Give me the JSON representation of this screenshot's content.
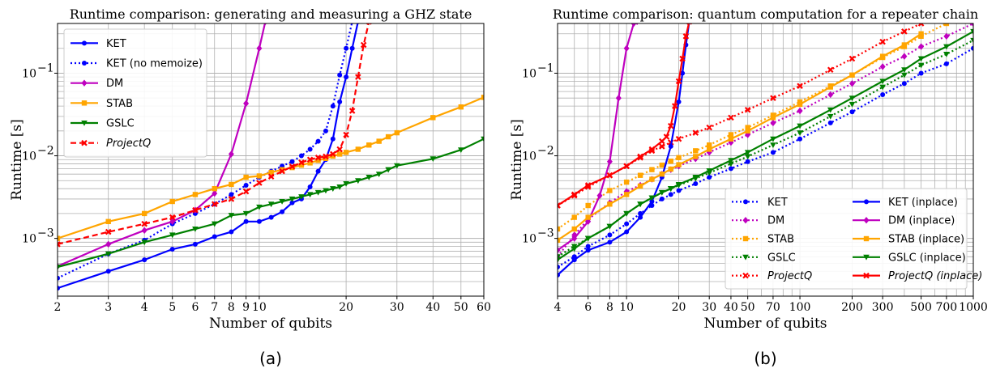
{
  "chart_data": [
    {
      "type": "line",
      "title": "Runtime comparison: generating and measuring a GHZ state",
      "xlabel": "Number of qubits",
      "ylabel": "Runtime [s]",
      "caption": "(a)",
      "xscale": "log",
      "yscale": "log",
      "xlim": [
        2,
        60
      ],
      "ylim": [
        0.0002,
        0.4
      ],
      "grid": true,
      "legend": "top-left",
      "xticks": [
        2,
        3,
        4,
        5,
        6,
        7,
        8,
        9,
        10,
        20,
        30,
        40,
        50,
        60
      ],
      "xtick_labels": [
        "2",
        "3",
        "4",
        "5",
        "6",
        "7",
        "8",
        "9",
        "10",
        "20",
        "30",
        "40",
        "50",
        "60"
      ],
      "yticks": [
        0.001,
        0.01,
        0.1
      ],
      "ytick_labels": [
        "10",
        "10",
        "10"
      ],
      "ytick_exps": [
        "−3",
        "−2",
        "−1"
      ],
      "series": [
        {
          "name": "KET",
          "color": "#0000ff",
          "dash": "solid",
          "marker": "circle",
          "x": [
            2,
            3,
            4,
            5,
            6,
            7,
            8,
            9,
            10,
            11,
            12,
            13,
            14,
            15,
            16,
            17,
            18,
            19,
            20,
            21,
            22
          ],
          "y": [
            0.00025,
            0.0004,
            0.00055,
            0.00074,
            0.00085,
            0.00105,
            0.0012,
            0.0016,
            0.0016,
            0.0018,
            0.0021,
            0.0027,
            0.003,
            0.0042,
            0.0065,
            0.009,
            0.016,
            0.045,
            0.09,
            0.2,
            0.42
          ]
        },
        {
          "name": "KET (no memoize)",
          "color": "#0000ff",
          "dash": "dotted",
          "marker": "circle",
          "x": [
            2,
            3,
            4,
            5,
            6,
            7,
            8,
            9,
            10,
            11,
            12,
            13,
            14,
            15,
            16,
            17,
            18,
            19,
            20,
            21
          ],
          "y": [
            0.00033,
            0.00065,
            0.00095,
            0.0015,
            0.002,
            0.0026,
            0.0034,
            0.0044,
            0.0055,
            0.0065,
            0.0075,
            0.0085,
            0.01,
            0.012,
            0.015,
            0.02,
            0.04,
            0.095,
            0.2,
            0.42
          ]
        },
        {
          "name": "DM",
          "color": "#bf00bf",
          "dash": "solid",
          "marker": "diamond",
          "x": [
            2,
            3,
            4,
            5,
            6,
            7,
            8,
            9,
            10,
            10.5
          ],
          "y": [
            0.00046,
            0.00085,
            0.00125,
            0.0016,
            0.0022,
            0.0035,
            0.0105,
            0.043,
            0.2,
            0.42
          ]
        },
        {
          "name": "STAB",
          "color": "#ffa500",
          "dash": "solid",
          "marker": "square",
          "x": [
            2,
            3,
            4,
            5,
            6,
            7,
            8,
            9,
            10,
            11,
            12,
            13,
            14,
            15,
            16,
            17,
            18,
            19,
            20,
            22,
            24,
            26,
            28,
            30,
            40,
            50,
            60
          ],
          "y": [
            0.001,
            0.0016,
            0.002,
            0.0028,
            0.0034,
            0.004,
            0.0045,
            0.0055,
            0.0057,
            0.0063,
            0.0068,
            0.0072,
            0.0077,
            0.0082,
            0.0088,
            0.0093,
            0.0099,
            0.0105,
            0.011,
            0.012,
            0.0135,
            0.015,
            0.017,
            0.019,
            0.029,
            0.039,
            0.051
          ]
        },
        {
          "name": "GSLC",
          "color": "#008000",
          "dash": "solid",
          "marker": "triangle-down",
          "x": [
            2,
            3,
            4,
            5,
            6,
            7,
            8,
            9,
            10,
            11,
            12,
            13,
            14,
            15,
            16,
            17,
            18,
            19,
            20,
            22,
            24,
            26,
            28,
            30,
            40,
            50,
            60
          ],
          "y": [
            0.00045,
            0.00065,
            0.0009,
            0.0011,
            0.0013,
            0.0015,
            0.0019,
            0.002,
            0.0024,
            0.0026,
            0.0028,
            0.003,
            0.0032,
            0.0034,
            0.0036,
            0.0038,
            0.004,
            0.0042,
            0.0046,
            0.005,
            0.0055,
            0.006,
            0.0068,
            0.0076,
            0.0092,
            0.0118,
            0.016
          ]
        },
        {
          "name": "ProjectQ",
          "name_italic": true,
          "color": "#ff0000",
          "dash": "dashed",
          "marker": "x",
          "x": [
            2,
            3,
            4,
            5,
            6,
            7,
            8,
            9,
            10,
            11,
            12,
            13,
            14,
            15,
            16,
            17,
            18,
            19,
            20,
            21,
            22,
            23,
            24
          ],
          "y": [
            0.00085,
            0.0012,
            0.0015,
            0.0018,
            0.0022,
            0.0026,
            0.003,
            0.0037,
            0.0047,
            0.0056,
            0.0065,
            0.0074,
            0.0083,
            0.009,
            0.0095,
            0.0098,
            0.0105,
            0.012,
            0.018,
            0.035,
            0.09,
            0.22,
            0.42
          ]
        }
      ]
    },
    {
      "type": "line",
      "title": "Runtime comparison: quantum computation for a repeater chain",
      "xlabel": "Number of qubits",
      "ylabel": "Runtime [s]",
      "caption": "(b)",
      "xscale": "log",
      "yscale": "log",
      "xlim": [
        4,
        1000
      ],
      "ylim": [
        0.0002,
        0.4
      ],
      "grid": true,
      "legend": "bottom-right",
      "legend_columns": 2,
      "xticks": [
        4,
        6,
        8,
        10,
        20,
        30,
        40,
        50,
        70,
        100,
        200,
        300,
        500,
        700,
        1000
      ],
      "xtick_labels": [
        "4",
        "6",
        "8",
        "10",
        "20",
        "30",
        "40",
        "50",
        "70",
        "100",
        "200",
        "300",
        "500",
        "700",
        "1000"
      ],
      "yticks": [
        0.001,
        0.01,
        0.1
      ],
      "ytick_labels": [
        "10",
        "10",
        "10"
      ],
      "ytick_exps": [
        "−3",
        "−2",
        "−1"
      ],
      "series": [
        {
          "name": "KET",
          "color": "#0000ff",
          "dash": "dotted",
          "marker": "circle",
          "x": [
            4,
            5,
            6,
            8,
            10,
            12,
            14,
            16,
            18,
            20,
            25,
            30,
            40,
            50,
            70,
            100,
            150,
            200,
            300,
            400,
            500,
            700,
            1000
          ],
          "y": [
            0.00045,
            0.0006,
            0.0008,
            0.0011,
            0.0015,
            0.002,
            0.0025,
            0.003,
            0.0034,
            0.0038,
            0.0046,
            0.0055,
            0.007,
            0.0085,
            0.011,
            0.016,
            0.025,
            0.034,
            0.055,
            0.075,
            0.1,
            0.13,
            0.2
          ]
        },
        {
          "name": "DM",
          "color": "#bf00bf",
          "dash": "dotted",
          "marker": "diamond",
          "x": [
            4,
            5,
            6,
            8,
            10,
            12,
            14,
            16,
            18,
            20,
            25,
            30,
            40,
            50,
            70,
            100,
            150,
            200,
            300,
            400,
            500,
            700,
            1000
          ],
          "y": [
            0.0006,
            0.0011,
            0.0017,
            0.0027,
            0.0037,
            0.0044,
            0.0052,
            0.006,
            0.0068,
            0.0075,
            0.0092,
            0.011,
            0.0145,
            0.018,
            0.025,
            0.035,
            0.055,
            0.075,
            0.12,
            0.16,
            0.21,
            0.28,
            0.4
          ]
        },
        {
          "name": "STAB",
          "color": "#ffa500",
          "dash": "dotted",
          "marker": "square",
          "x": [
            4,
            5,
            6,
            8,
            10,
            12,
            14,
            16,
            18,
            20,
            25,
            30,
            40,
            50,
            70,
            100,
            150,
            200,
            300,
            400,
            500,
            700
          ],
          "y": [
            0.0013,
            0.0018,
            0.0025,
            0.0038,
            0.0048,
            0.0058,
            0.0068,
            0.0077,
            0.0086,
            0.0095,
            0.0115,
            0.0135,
            0.018,
            0.022,
            0.031,
            0.045,
            0.07,
            0.095,
            0.155,
            0.21,
            0.28,
            0.4
          ]
        },
        {
          "name": "GSLC",
          "color": "#008000",
          "dash": "dotted",
          "marker": "triangle-down",
          "x": [
            4,
            5,
            6,
            8,
            10,
            12,
            14,
            16,
            18,
            20,
            25,
            30,
            40,
            50,
            70,
            100,
            150,
            200,
            300,
            400,
            500,
            700,
            1000
          ],
          "y": [
            0.0006,
            0.0008,
            0.001,
            0.0014,
            0.002,
            0.0026,
            0.0031,
            0.0036,
            0.004,
            0.0044,
            0.0053,
            0.0062,
            0.008,
            0.0098,
            0.0135,
            0.019,
            0.03,
            0.042,
            0.068,
            0.095,
            0.125,
            0.17,
            0.25
          ]
        },
        {
          "name": "ProjectQ",
          "name_italic": true,
          "color": "#ff0000",
          "dash": "dotted",
          "marker": "x",
          "x": [
            4,
            5,
            6,
            8,
            10,
            12,
            14,
            16,
            18,
            20,
            25,
            30,
            40,
            50,
            70,
            100,
            150,
            200,
            300,
            400,
            500
          ],
          "y": [
            0.0025,
            0.0033,
            0.0042,
            0.0058,
            0.0075,
            0.0095,
            0.0115,
            0.013,
            0.0145,
            0.016,
            0.019,
            0.022,
            0.029,
            0.036,
            0.05,
            0.07,
            0.11,
            0.15,
            0.24,
            0.32,
            0.4
          ]
        },
        {
          "name": "KET (inplace)",
          "color": "#0000ff",
          "dash": "solid",
          "marker": "circle",
          "x": [
            4,
            5,
            6,
            8,
            10,
            12,
            14,
            16,
            18,
            20,
            21,
            22,
            23
          ],
          "y": [
            0.00036,
            0.00055,
            0.00072,
            0.0009,
            0.0012,
            0.0018,
            0.0028,
            0.0055,
            0.013,
            0.045,
            0.1,
            0.22,
            0.42
          ]
        },
        {
          "name": "DM (inplace)",
          "color": "#bf00bf",
          "dash": "solid",
          "marker": "diamond",
          "x": [
            4,
            5,
            6,
            7,
            8,
            9,
            10,
            11,
            11.5
          ],
          "y": [
            0.00072,
            0.001,
            0.0016,
            0.0033,
            0.0085,
            0.05,
            0.2,
            0.4,
            0.42
          ]
        },
        {
          "name": "STAB (inplace)",
          "color": "#ffa500",
          "dash": "solid",
          "marker": "square",
          "x": [
            4,
            5,
            6,
            8,
            10,
            12,
            14,
            16,
            18,
            20,
            25,
            30,
            40,
            50,
            70,
            100,
            150,
            200,
            300,
            400,
            500
          ],
          "y": [
            0.00095,
            0.0013,
            0.0018,
            0.0026,
            0.0034,
            0.0043,
            0.0052,
            0.006,
            0.0069,
            0.0078,
            0.0098,
            0.012,
            0.016,
            0.02,
            0.029,
            0.042,
            0.068,
            0.095,
            0.16,
            0.22,
            0.3
          ]
        },
        {
          "name": "GSLC (inplace)",
          "color": "#008000",
          "dash": "solid",
          "marker": "triangle-down",
          "x": [
            4,
            5,
            6,
            8,
            10,
            12,
            14,
            16,
            18,
            20,
            25,
            30,
            40,
            50,
            70,
            100,
            150,
            200,
            300,
            400,
            500,
            700,
            1000
          ],
          "y": [
            0.00055,
            0.00075,
            0.001,
            0.0014,
            0.002,
            0.0026,
            0.0031,
            0.0036,
            0.004,
            0.0045,
            0.0055,
            0.0066,
            0.0088,
            0.011,
            0.016,
            0.023,
            0.036,
            0.05,
            0.08,
            0.11,
            0.15,
            0.21,
            0.32
          ]
        },
        {
          "name": "ProjectQ (inplace)",
          "name_italic": true,
          "color": "#ff0000",
          "dash": "solid",
          "marker": "x",
          "x": [
            4,
            5,
            6,
            8,
            10,
            12,
            14,
            16,
            17,
            18,
            19,
            20,
            21,
            22,
            23
          ],
          "y": [
            0.0025,
            0.0034,
            0.0044,
            0.0058,
            0.0075,
            0.0098,
            0.012,
            0.015,
            0.017,
            0.023,
            0.04,
            0.08,
            0.15,
            0.28,
            0.42
          ]
        }
      ]
    }
  ]
}
